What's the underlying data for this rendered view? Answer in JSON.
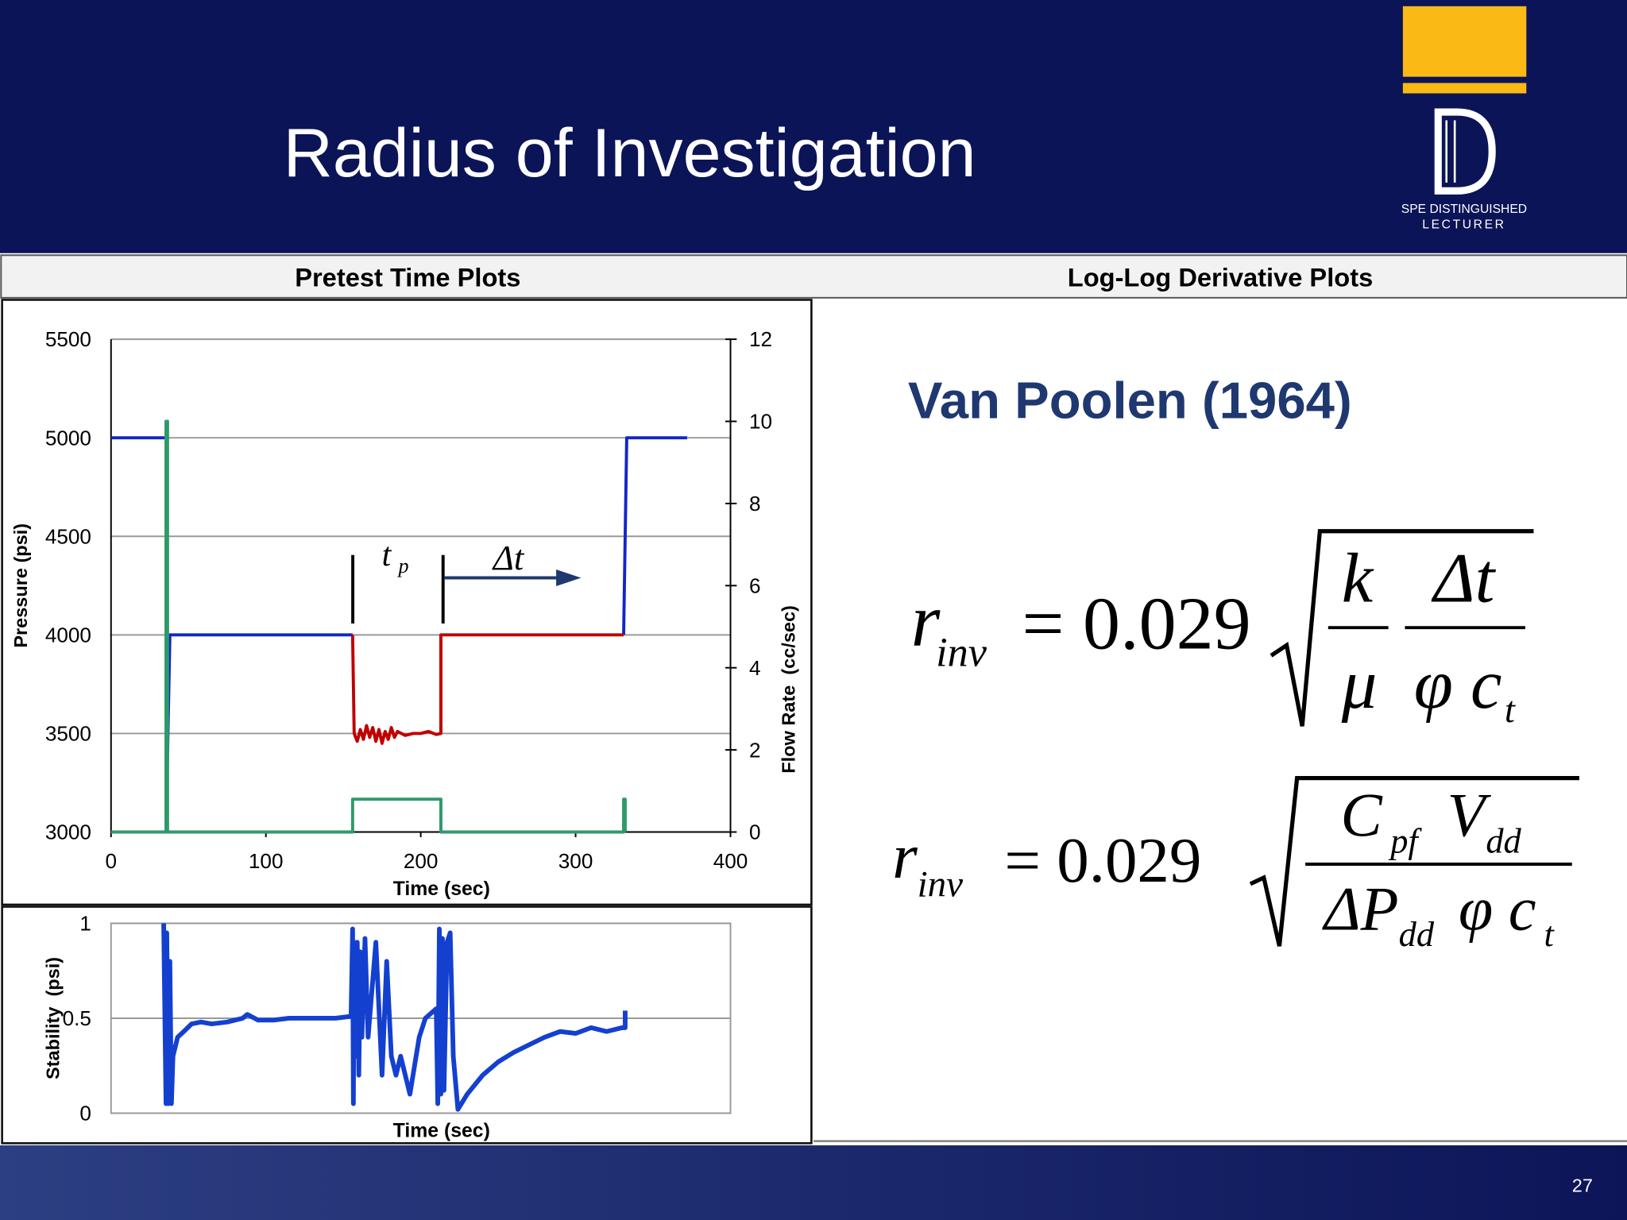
{
  "header": {
    "title": "Radius of Investigation",
    "logo_line_1": "SPE DISTINGUISHED",
    "logo_line_2": "LECTURER"
  },
  "table": {
    "headers": [
      "Pretest Time Plots",
      "Log-Log Derivative Plots"
    ]
  },
  "chart_data": [
    {
      "type": "line",
      "x_label": "Time (sec)",
      "y_label": "Pressure (psi)",
      "y2_label": "Flow Rate  (cc/sec)",
      "xlim": [
        0,
        400
      ],
      "xticks": [
        0,
        100,
        200,
        300,
        400
      ],
      "ylim": [
        3000,
        5500
      ],
      "yticks": [
        3000,
        3500,
        4000,
        4500,
        5000,
        5500
      ],
      "y2lim": [
        0,
        12
      ],
      "y2ticks": [
        0,
        2,
        4,
        6,
        8,
        10,
        12
      ],
      "grid": true,
      "annotations": {
        "tp": "t",
        "tp_sub": "p",
        "dt": "Δt"
      },
      "series": [
        {
          "color": "#1426c8",
          "x": [
            0,
            35.5,
            35.5,
            38,
            156,
            156,
            331,
            333,
            372
          ],
          "values": [
            5000,
            5000,
            3000,
            4000,
            4000,
            null,
            4000,
            5000,
            5000
          ]
        },
        {
          "color": "#c00000",
          "x": [
            156,
            157,
            159,
            161,
            163,
            165,
            167,
            169,
            171,
            173,
            175,
            177,
            179,
            181,
            183,
            185,
            190,
            195,
            200,
            205,
            210,
            213,
            213,
            220,
            250,
            300,
            331
          ],
          "values": [
            4000,
            3500,
            3460,
            3520,
            3470,
            3540,
            3480,
            3530,
            3460,
            3520,
            3450,
            3510,
            3470,
            3530,
            3480,
            3510,
            3490,
            3500,
            3500,
            3510,
            3495,
            3500,
            4000,
            4000,
            4000,
            4000,
            4000
          ]
        },
        {
          "color": "#2e9a6a",
          "axis": "y2",
          "x": [
            0,
            35.5,
            35.5,
            36.5,
            36.5,
            156,
            156,
            213,
            213,
            331,
            331,
            332,
            332
          ],
          "values": [
            0,
            0,
            10,
            10,
            0,
            0,
            0.8,
            0.8,
            0,
            0,
            0.8,
            0.8,
            0
          ]
        }
      ]
    },
    {
      "type": "line",
      "x_label": "Time (sec)",
      "y_label": "Stability  (psi)",
      "xlim": [
        0,
        400
      ],
      "ylim": [
        0,
        1
      ],
      "yticks": [
        0,
        0.5,
        1
      ],
      "grid": true,
      "series": [
        {
          "color": "#1440d0",
          "x": [
            34,
            35.5,
            36,
            37,
            38,
            39,
            40,
            43,
            47,
            52,
            58,
            65,
            75,
            85,
            88,
            95,
            105,
            115,
            130,
            145,
            155,
            156,
            156.5,
            157,
            158,
            159,
            160,
            161,
            162,
            164,
            166,
            168,
            171,
            175,
            178,
            181,
            184,
            187,
            193,
            199,
            203,
            210,
            211,
            212,
            213,
            214,
            215,
            217,
            219,
            221,
            224,
            230,
            240,
            250,
            260,
            270,
            280,
            290,
            300,
            310,
            320,
            330,
            332,
            332
          ],
          "values": [
            1.0,
            0.05,
            0.95,
            0.05,
            0.8,
            0.05,
            0.3,
            0.4,
            0.43,
            0.47,
            0.48,
            0.47,
            0.48,
            0.5,
            0.52,
            0.49,
            0.49,
            0.5,
            0.5,
            0.5,
            0.51,
            0.97,
            0.05,
            0.9,
            0.3,
            0.9,
            0.2,
            0.85,
            0.4,
            0.92,
            0.4,
            0.6,
            0.9,
            0.2,
            0.8,
            0.3,
            0.2,
            0.3,
            0.1,
            0.4,
            0.5,
            0.55,
            0.05,
            0.97,
            0.1,
            0.92,
            0.12,
            0.9,
            0.95,
            0.3,
            0.02,
            0.1,
            0.2,
            0.27,
            0.32,
            0.36,
            0.4,
            0.43,
            0.42,
            0.45,
            0.43,
            0.45,
            0.45,
            0.54
          ]
        }
      ]
    }
  ],
  "reference": "Van Poolen (1964)",
  "equation_1": {
    "lhs": "r",
    "lhs_sub": "inv",
    "coefficient": "= 0.029",
    "numerator_1": "k",
    "denominator_1": "μ",
    "numerator_2": "Δt",
    "denominator_2": "φ c",
    "denominator_2_sub": "t"
  },
  "equation_2": {
    "lhs": "r",
    "lhs_sub": "inv",
    "coefficient": "= 0.029",
    "numerator_1": "C",
    "numerator_1_sub": "pf",
    "numerator_2": "V",
    "numerator_2_sub": "dd",
    "denominator_1": "ΔP",
    "denominator_1_sub": "dd",
    "denominator_2": "φ c",
    "denominator_2_sub": "t"
  },
  "page_number": "27"
}
